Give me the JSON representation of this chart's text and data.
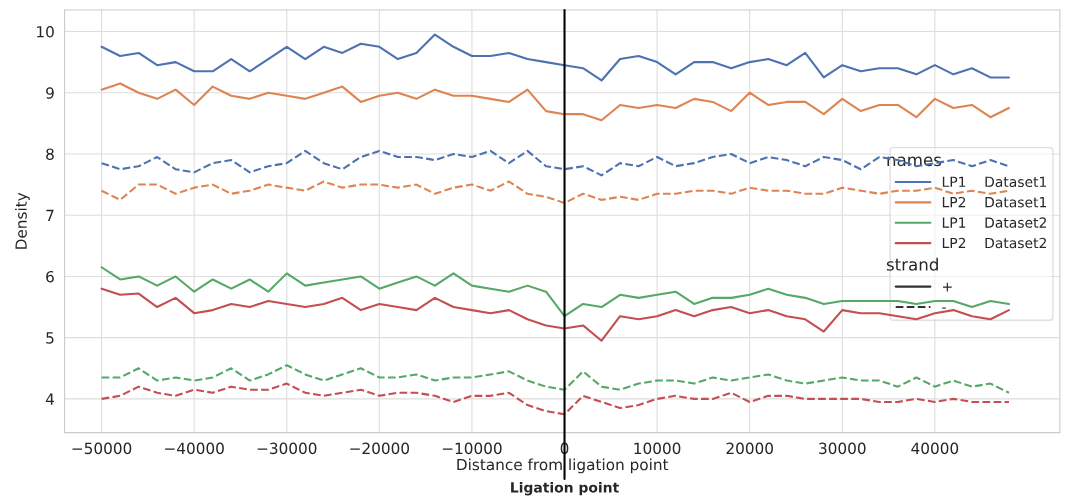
{
  "chart_data": {
    "type": "line",
    "xlabel": "Distance from ligation point",
    "ylabel": "Density",
    "legend_title": "names",
    "x": [
      -50000,
      -48000,
      -46000,
      -44000,
      -42000,
      -40000,
      -38000,
      -36000,
      -34000,
      -32000,
      -30000,
      -28000,
      -26000,
      -24000,
      -22000,
      -20000,
      -18000,
      -16000,
      -14000,
      -12000,
      -10000,
      -8000,
      -6000,
      -4000,
      -2000,
      0,
      2000,
      4000,
      6000,
      8000,
      10000,
      12000,
      14000,
      16000,
      18000,
      20000,
      22000,
      24000,
      26000,
      28000,
      30000,
      32000,
      34000,
      36000,
      38000,
      40000,
      42000,
      44000,
      46000,
      48000
    ],
    "series": [
      {
        "name": "LP1    Dataset1",
        "color": "#4c72b0",
        "line_style": "solid",
        "values": [
          9.75,
          9.6,
          9.65,
          9.45,
          9.5,
          9.35,
          9.35,
          9.55,
          9.35,
          9.55,
          9.75,
          9.55,
          9.75,
          9.65,
          9.8,
          9.75,
          9.55,
          9.65,
          9.95,
          9.75,
          9.6,
          9.6,
          9.65,
          9.55,
          9.5,
          9.45,
          9.4,
          9.2,
          9.55,
          9.6,
          9.5,
          9.3,
          9.5,
          9.5,
          9.4,
          9.5,
          9.55,
          9.45,
          9.65,
          9.25,
          9.45,
          9.35,
          9.4,
          9.4,
          9.3,
          9.45,
          9.3,
          9.4,
          9.25,
          9.25
        ]
      },
      {
        "name": "LP2    Dataset1",
        "color": "#dd8452",
        "line_style": "solid",
        "values": [
          9.05,
          9.15,
          9.0,
          8.9,
          9.05,
          8.8,
          9.1,
          8.95,
          8.9,
          9.0,
          8.95,
          8.9,
          9.0,
          9.1,
          8.85,
          8.95,
          9.0,
          8.9,
          9.05,
          8.95,
          8.95,
          8.9,
          8.85,
          9.05,
          8.7,
          8.65,
          8.65,
          8.55,
          8.8,
          8.75,
          8.8,
          8.75,
          8.9,
          8.85,
          8.7,
          9.0,
          8.8,
          8.85,
          8.85,
          8.65,
          8.9,
          8.7,
          8.8,
          8.8,
          8.6,
          8.9,
          8.75,
          8.8,
          8.6,
          8.75
        ]
      },
      {
        "color": "#4c72b0",
        "line_style": "dashed",
        "values": [
          7.85,
          7.75,
          7.8,
          7.95,
          7.75,
          7.7,
          7.85,
          7.9,
          7.7,
          7.8,
          7.85,
          8.05,
          7.85,
          7.75,
          7.95,
          8.05,
          7.95,
          7.95,
          7.9,
          8.0,
          7.95,
          8.05,
          7.85,
          8.05,
          7.8,
          7.75,
          7.8,
          7.65,
          7.85,
          7.8,
          7.95,
          7.8,
          7.85,
          7.95,
          8.0,
          7.85,
          7.95,
          7.9,
          7.8,
          7.95,
          7.9,
          7.75,
          7.95,
          7.9,
          7.8,
          7.85,
          7.9,
          7.8,
          7.9,
          7.8
        ]
      },
      {
        "color": "#dd8452",
        "line_style": "dashed",
        "values": [
          7.4,
          7.25,
          7.5,
          7.5,
          7.35,
          7.45,
          7.5,
          7.35,
          7.4,
          7.5,
          7.45,
          7.4,
          7.55,
          7.45,
          7.5,
          7.5,
          7.45,
          7.5,
          7.35,
          7.45,
          7.5,
          7.4,
          7.55,
          7.35,
          7.3,
          7.2,
          7.35,
          7.25,
          7.3,
          7.25,
          7.35,
          7.35,
          7.4,
          7.4,
          7.35,
          7.45,
          7.4,
          7.4,
          7.35,
          7.35,
          7.45,
          7.4,
          7.35,
          7.4,
          7.4,
          7.45,
          7.35,
          7.4,
          7.35,
          7.4
        ]
      },
      {
        "name": "LP1    Dataset2",
        "color": "#55a868",
        "line_style": "solid",
        "values": [
          6.15,
          5.95,
          6.0,
          5.85,
          6.0,
          5.75,
          5.95,
          5.8,
          5.95,
          5.75,
          6.05,
          5.85,
          5.9,
          5.95,
          6.0,
          5.8,
          5.9,
          6.0,
          5.85,
          6.05,
          5.85,
          5.8,
          5.75,
          5.85,
          5.75,
          5.35,
          5.55,
          5.5,
          5.7,
          5.65,
          5.7,
          5.75,
          5.55,
          5.65,
          5.65,
          5.7,
          5.8,
          5.7,
          5.65,
          5.55,
          5.6,
          5.6,
          5.6,
          5.6,
          5.55,
          5.6,
          5.6,
          5.5,
          5.6,
          5.55
        ]
      },
      {
        "name": "LP2    Dataset2",
        "color": "#c44e52",
        "line_style": "solid",
        "values": [
          5.8,
          5.7,
          5.72,
          5.5,
          5.65,
          5.4,
          5.45,
          5.55,
          5.5,
          5.6,
          5.55,
          5.5,
          5.55,
          5.65,
          5.45,
          5.55,
          5.5,
          5.45,
          5.65,
          5.5,
          5.45,
          5.4,
          5.45,
          5.3,
          5.2,
          5.15,
          5.2,
          4.95,
          5.35,
          5.3,
          5.35,
          5.45,
          5.35,
          5.45,
          5.5,
          5.4,
          5.45,
          5.35,
          5.3,
          5.1,
          5.45,
          5.4,
          5.4,
          5.35,
          5.3,
          5.4,
          5.45,
          5.35,
          5.3,
          5.45
        ]
      },
      {
        "color": "#55a868",
        "line_style": "dashed",
        "values": [
          4.35,
          4.35,
          4.5,
          4.3,
          4.35,
          4.3,
          4.35,
          4.5,
          4.3,
          4.4,
          4.55,
          4.4,
          4.3,
          4.4,
          4.5,
          4.35,
          4.35,
          4.4,
          4.3,
          4.35,
          4.35,
          4.4,
          4.45,
          4.3,
          4.2,
          4.15,
          4.45,
          4.2,
          4.15,
          4.25,
          4.3,
          4.3,
          4.25,
          4.35,
          4.3,
          4.35,
          4.4,
          4.3,
          4.25,
          4.3,
          4.35,
          4.3,
          4.3,
          4.2,
          4.35,
          4.2,
          4.3,
          4.2,
          4.25,
          4.1
        ]
      },
      {
        "color": "#c44e52",
        "line_style": "dashed",
        "values": [
          4.0,
          4.05,
          4.2,
          4.1,
          4.05,
          4.15,
          4.1,
          4.2,
          4.15,
          4.15,
          4.25,
          4.1,
          4.05,
          4.1,
          4.15,
          4.05,
          4.1,
          4.1,
          4.05,
          3.95,
          4.05,
          4.05,
          4.1,
          3.9,
          3.8,
          3.75,
          4.05,
          3.95,
          3.85,
          3.9,
          4.0,
          4.05,
          4.0,
          4.0,
          4.1,
          3.95,
          4.05,
          4.05,
          4.0,
          4.0,
          4.0,
          4.0,
          3.95,
          3.95,
          4.0,
          3.95,
          4.0,
          3.95,
          3.95,
          3.95
        ]
      }
    ],
    "annotations": [
      "strand",
      "+",
      "-"
    ],
    "ref_lines": [
      {
        "axis": "x",
        "value": 0,
        "label": "Ligation point",
        "color": "#000000"
      }
    ],
    "xlim": [
      -54000,
      53500
    ],
    "ylim": [
      3.45,
      10.35
    ],
    "xticks": [
      -50000,
      -40000,
      -30000,
      -20000,
      -10000,
      0,
      10000,
      20000,
      30000,
      40000
    ],
    "yticks": [
      4,
      5,
      6,
      7,
      8,
      9,
      10
    ],
    "grid": true,
    "legend": "right"
  }
}
